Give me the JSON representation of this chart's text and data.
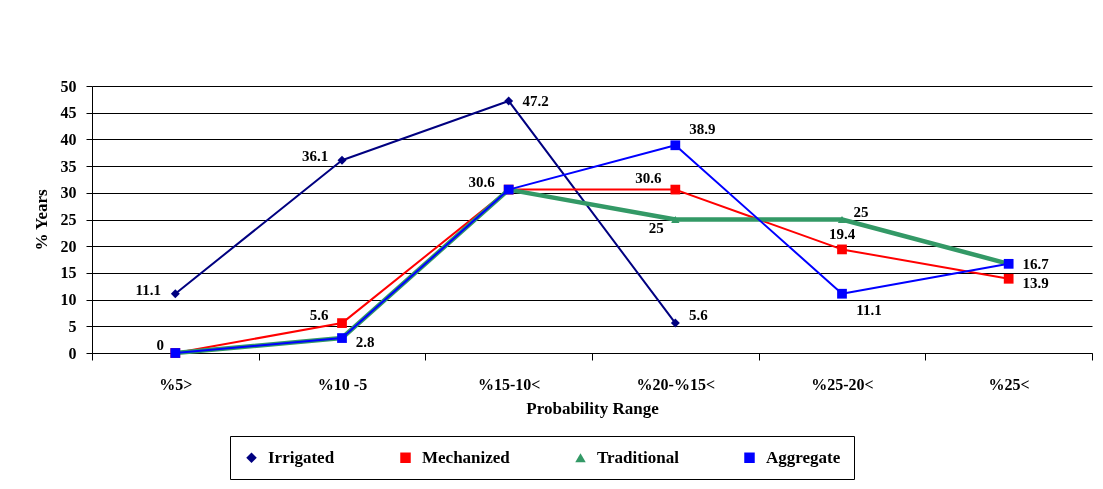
{
  "chart_data": {
    "type": "line",
    "xlabel": "Probability Range",
    "ylabel": "% Years",
    "categories": [
      "%5>",
      "%10 -5",
      "%15-10<",
      "%20-%15<",
      "%25-20<",
      "%25<"
    ],
    "ylim": [
      0,
      50
    ],
    "yticks": [
      0,
      5,
      10,
      15,
      20,
      25,
      30,
      35,
      40,
      45,
      50
    ],
    "grid": "y",
    "legend": "bottom",
    "series": [
      {
        "name": "Irrigated",
        "color": "#000080",
        "marker": "diamond",
        "values": [
          11.1,
          36.1,
          47.2,
          5.6,
          null,
          null
        ],
        "value_labels": [
          "11.1",
          "36.1",
          "47.2",
          "5.6",
          null,
          null
        ]
      },
      {
        "name": "Mechanized",
        "color": "#ff0000",
        "marker": "square",
        "values": [
          0,
          5.6,
          30.6,
          30.6,
          19.4,
          13.9
        ],
        "value_labels": [
          null,
          "5.6",
          "30.6",
          "30.6",
          "19.4",
          "13.9"
        ]
      },
      {
        "name": "Traditional",
        "color": "#339966",
        "marker": "triangle",
        "values": [
          0,
          2.8,
          30.6,
          25,
          25,
          16.7
        ],
        "value_labels": [
          null,
          null,
          null,
          "25",
          "25",
          null
        ]
      },
      {
        "name": "Aggregate",
        "color": "#0000ff",
        "marker": "square",
        "values": [
          0,
          2.8,
          30.6,
          38.9,
          11.1,
          16.7
        ],
        "value_labels": [
          "0",
          "2.8",
          null,
          "38.9",
          "11.1",
          "16.7"
        ]
      }
    ]
  }
}
